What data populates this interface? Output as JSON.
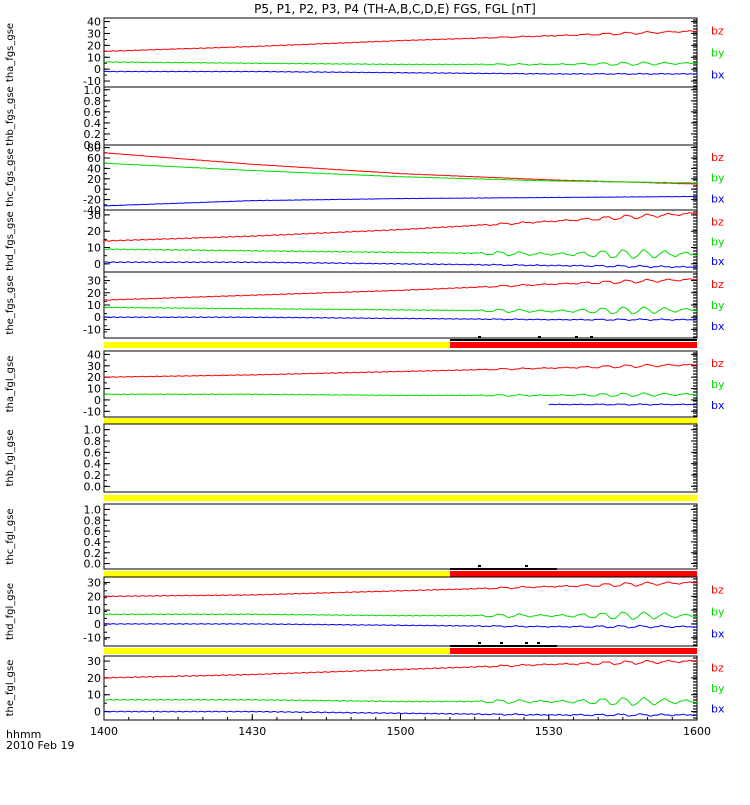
{
  "figure": {
    "title": "P5, P1, P2, P3, P4 (TH-A,B,C,D,E) FGS, FGL [nT]",
    "time_label_line1": "hhmm",
    "time_label_line2": "2010 Feb 19",
    "x_tick_labels": [
      "1400",
      "1430",
      "1500",
      "1530",
      "1600"
    ]
  },
  "colors": {
    "bx": "#0000ff",
    "by": "#00dd00",
    "bz": "#ff0000",
    "mode_slow": "#ffff00",
    "mode_fast": "#ff0000",
    "burst": "#000000"
  },
  "chart_data": [
    {
      "type": "line",
      "ylabel": "tha_fgs_gse",
      "ylim": [
        -15,
        43
      ],
      "yticks": [
        "40",
        "30",
        "20",
        "10",
        "0",
        "-10"
      ],
      "ytick_values": [
        40,
        30,
        20,
        10,
        0,
        -10
      ],
      "x": [
        "14:00",
        "14:30",
        "15:00",
        "15:30",
        "16:00"
      ],
      "series": [
        {
          "name": "bz",
          "values": [
            15,
            19,
            24,
            28,
            32
          ]
        },
        {
          "name": "by",
          "values": [
            6,
            5,
            4,
            4,
            5
          ]
        },
        {
          "name": "bx",
          "values": [
            -2,
            -2,
            -3,
            -4,
            -4
          ]
        }
      ]
    },
    {
      "type": "line",
      "ylabel": "thb_fgs_gse",
      "ylim": [
        0,
        1.05
      ],
      "yticks": [
        "1.0",
        "0.8",
        "0.6",
        "0.4",
        "0.2",
        "0.0"
      ],
      "ytick_values": [
        1.0,
        0.8,
        0.6,
        0.4,
        0.2,
        0.0
      ],
      "series": []
    },
    {
      "type": "line",
      "ylabel": "thc_fgs_gse",
      "ylim": [
        -40,
        85
      ],
      "yticks": [
        "80",
        "60",
        "40",
        "20",
        "0",
        "-20",
        "-40"
      ],
      "ytick_values": [
        80,
        60,
        40,
        20,
        0,
        -20,
        -40
      ],
      "x": [
        "14:00",
        "14:30",
        "15:00",
        "15:30",
        "16:00"
      ],
      "series": [
        {
          "name": "bz",
          "values": [
            70,
            48,
            30,
            18,
            10
          ]
        },
        {
          "name": "by",
          "values": [
            50,
            36,
            24,
            16,
            12
          ]
        },
        {
          "name": "bx",
          "values": [
            -32,
            -22,
            -18,
            -16,
            -14
          ]
        }
      ]
    },
    {
      "type": "line",
      "ylabel": "thd_fgs_gse",
      "ylim": [
        -5,
        33
      ],
      "yticks": [
        "30",
        "20",
        "10",
        "0"
      ],
      "ytick_values": [
        30,
        20,
        10,
        0
      ],
      "x": [
        "14:00",
        "14:30",
        "15:00",
        "15:30",
        "16:00"
      ],
      "series": [
        {
          "name": "bz",
          "values": [
            14,
            17,
            21,
            26,
            31
          ]
        },
        {
          "name": "by",
          "values": [
            9,
            8,
            7,
            6,
            6
          ]
        },
        {
          "name": "bx",
          "values": [
            1,
            1,
            0,
            -1,
            -2
          ]
        }
      ]
    },
    {
      "type": "line",
      "ylabel": "the_fgs_gse",
      "ylim": [
        -17,
        37
      ],
      "yticks": [
        "30",
        "20",
        "10",
        "0",
        "-10"
      ],
      "ytick_values": [
        30,
        20,
        10,
        0,
        -10
      ],
      "x": [
        "14:00",
        "14:30",
        "15:00",
        "15:30",
        "16:00"
      ],
      "series": [
        {
          "name": "bz",
          "values": [
            14,
            18,
            22,
            27,
            31
          ]
        },
        {
          "name": "by",
          "values": [
            8,
            7,
            6,
            5,
            6
          ]
        },
        {
          "name": "bx",
          "values": [
            0,
            0,
            -1,
            -2,
            -2
          ]
        }
      ]
    },
    {
      "type": "line",
      "ylabel": "tha_fgl_gse",
      "ylim": [
        -15,
        43
      ],
      "yticks": [
        "40",
        "30",
        "20",
        "10",
        "0",
        "-10"
      ],
      "ytick_values": [
        40,
        30,
        20,
        10,
        0,
        -10
      ],
      "x": [
        "14:00",
        "14:30",
        "15:00",
        "15:30",
        "16:00"
      ],
      "series": [
        {
          "name": "bz",
          "values": [
            20,
            22,
            25,
            28,
            31
          ]
        },
        {
          "name": "by",
          "values": [
            5,
            5,
            4,
            4,
            5
          ]
        },
        {
          "name": "bx",
          "values": [
            null,
            null,
            null,
            -4,
            -4
          ]
        }
      ]
    },
    {
      "type": "line",
      "ylabel": "thb_fgl_gse",
      "ylim": [
        -0.1,
        1.1
      ],
      "yticks": [
        "1.0",
        "0.8",
        "0.6",
        "0.4",
        "0.2",
        "0.0"
      ],
      "ytick_values": [
        1.0,
        0.8,
        0.6,
        0.4,
        0.2,
        0.0
      ],
      "series": []
    },
    {
      "type": "line",
      "ylabel": "thc_fgl_gse",
      "ylim": [
        -0.1,
        1.1
      ],
      "yticks": [
        "1.0",
        "0.8",
        "0.6",
        "0.4",
        "0.2",
        "0.0"
      ],
      "ytick_values": [
        1.0,
        0.8,
        0.6,
        0.4,
        0.2,
        0.0
      ],
      "series": []
    },
    {
      "type": "line",
      "ylabel": "thd_fgl_gse",
      "ylim": [
        -16,
        34
      ],
      "yticks": [
        "30",
        "20",
        "10",
        "0",
        "-10"
      ],
      "ytick_values": [
        30,
        20,
        10,
        0,
        -10
      ],
      "x": [
        "14:00",
        "14:30",
        "15:00",
        "15:30",
        "16:00"
      ],
      "series": [
        {
          "name": "bz",
          "values": [
            20,
            21,
            24,
            27,
            30
          ]
        },
        {
          "name": "by",
          "values": [
            7,
            7,
            6,
            6,
            6
          ]
        },
        {
          "name": "bx",
          "values": [
            0,
            0,
            -1,
            -2,
            -2
          ]
        }
      ]
    },
    {
      "type": "line",
      "ylabel": "the_fgl_gse",
      "ylim": [
        -5,
        33
      ],
      "yticks": [
        "30",
        "20",
        "10",
        "0"
      ],
      "ytick_values": [
        30,
        20,
        10,
        0
      ],
      "x": [
        "14:00",
        "14:30",
        "15:00",
        "15:30",
        "16:00"
      ],
      "series": [
        {
          "name": "bz",
          "values": [
            20,
            22,
            25,
            28,
            30
          ]
        },
        {
          "name": "by",
          "values": [
            7,
            7,
            6,
            6,
            6
          ]
        },
        {
          "name": "bx",
          "values": [
            0,
            0,
            -1,
            -2,
            -2
          ]
        }
      ]
    }
  ]
}
